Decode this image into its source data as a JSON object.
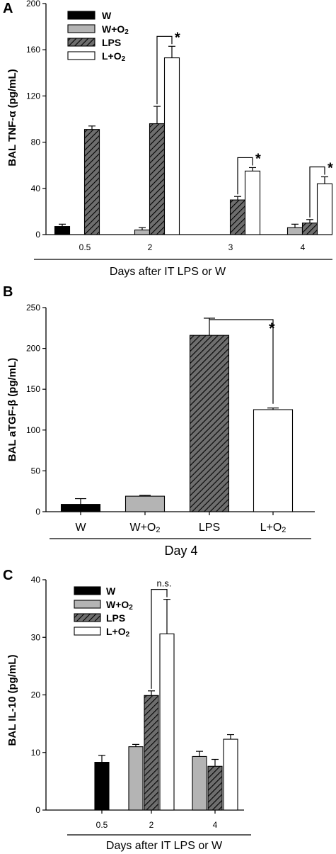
{
  "colors": {
    "W": "#000000",
    "W+O2": "#b4b4b4",
    "LPS": "#6e6e6e",
    "L+O2": "#ffffff",
    "hatch": "#000000"
  },
  "chart_data": [
    {
      "panel_label": "A",
      "type": "bar",
      "ylabel": "BAL TNF-α (pg/mL)",
      "xlabel": "Days after IT LPS or W",
      "ylim": [
        0,
        200
      ],
      "yticks": [
        0,
        40,
        80,
        120,
        160,
        200
      ],
      "categories": [
        "0.5",
        "2",
        "3",
        "4"
      ],
      "legend": {
        "placement": "top-left",
        "entries": [
          "W",
          "W+O2",
          "LPS",
          "L+O2"
        ]
      },
      "series": [
        {
          "name": "W",
          "values": [
            7,
            null,
            null,
            null
          ],
          "errors": [
            2,
            null,
            null,
            null
          ]
        },
        {
          "name": "W+O2",
          "values": [
            null,
            4,
            null,
            6
          ],
          "errors": [
            null,
            2,
            null,
            3
          ]
        },
        {
          "name": "LPS",
          "values": [
            91,
            96,
            30,
            10
          ],
          "errors": [
            3,
            15,
            3,
            3
          ]
        },
        {
          "name": "L+O2",
          "values": [
            null,
            153,
            55,
            44
          ],
          "errors": [
            null,
            10,
            3,
            6
          ]
        }
      ],
      "annotations": [
        {
          "category": "2",
          "text": "*"
        },
        {
          "category": "3",
          "text": "*"
        },
        {
          "category": "4",
          "text": "*"
        }
      ]
    },
    {
      "panel_label": "B",
      "type": "bar",
      "ylabel": "BAL aTGF-β (pg/mL)",
      "xlabel": "Day 4",
      "ylim": [
        0,
        250
      ],
      "yticks": [
        0,
        50,
        100,
        150,
        200,
        250
      ],
      "categories": [
        "W",
        "W+O2",
        "LPS",
        "L+O2"
      ],
      "values": [
        9,
        19,
        216,
        125
      ],
      "errors": [
        7,
        1,
        21,
        2
      ],
      "annotations": [
        {
          "from": "LPS",
          "to": "L+O2",
          "text": "*"
        }
      ]
    },
    {
      "panel_label": "C",
      "type": "bar",
      "ylabel": "BAL IL-10 (pg/mL)",
      "xlabel": "Days after IT LPS or W",
      "ylim": [
        0,
        40
      ],
      "yticks": [
        0,
        10,
        20,
        30,
        40
      ],
      "categories": [
        "0.5",
        "2",
        "4"
      ],
      "legend": {
        "placement": "top-left",
        "entries": [
          "W",
          "W+O2",
          "LPS",
          "L+O2"
        ]
      },
      "series": [
        {
          "name": "W",
          "values": [
            8.3,
            null,
            null
          ],
          "errors": [
            1.2,
            null,
            null
          ]
        },
        {
          "name": "W+O2",
          "values": [
            null,
            11,
            9.3
          ],
          "errors": [
            null,
            0.4,
            0.9
          ]
        },
        {
          "name": "LPS",
          "values": [
            null,
            19.9,
            7.6
          ],
          "errors": [
            null,
            0.8,
            1.2
          ]
        },
        {
          "name": "L+O2",
          "values": [
            null,
            30.6,
            12.3
          ],
          "errors": [
            null,
            6,
            0.8
          ]
        }
      ],
      "annotations": [
        {
          "category": "2",
          "text": "n.s."
        }
      ]
    }
  ]
}
